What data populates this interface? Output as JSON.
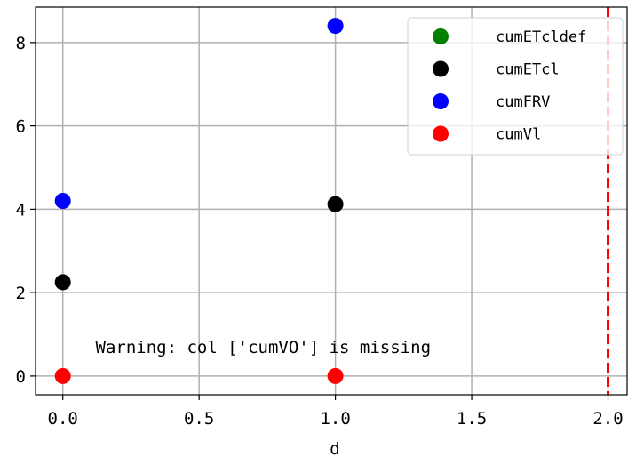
{
  "chart_data": {
    "type": "scatter",
    "title": "",
    "xlabel": "d",
    "ylabel": "",
    "xlim": [
      -0.1,
      2.07
    ],
    "ylim": [
      -0.45,
      8.85
    ],
    "xticks": [
      0.0,
      0.5,
      1.0,
      1.5,
      2.0
    ],
    "xtick_labels": [
      "0.0",
      "0.5",
      "1.0",
      "1.5",
      "2.0"
    ],
    "yticks": [
      0,
      2,
      4,
      6,
      8
    ],
    "ytick_labels": [
      "0",
      "2",
      "4",
      "6",
      "8"
    ],
    "grid": true,
    "legend_position": "top-right",
    "series": [
      {
        "name": "cumETcldef",
        "color": "#008000",
        "points": []
      },
      {
        "name": "cumETcl",
        "color": "#000000",
        "points": [
          [
            0,
            2.25
          ],
          [
            1,
            4.12
          ]
        ]
      },
      {
        "name": "cumFRV",
        "color": "#0000ff",
        "points": [
          [
            0,
            4.2
          ],
          [
            1,
            8.4
          ]
        ]
      },
      {
        "name": "cumVl",
        "color": "#ff0000",
        "points": [
          [
            0,
            0
          ],
          [
            1,
            0
          ]
        ]
      }
    ],
    "vertical_line": {
      "x": 2.0,
      "color": "#ff0000",
      "style": "dashed"
    },
    "annotation": {
      "text": "Warning: col ['cumVO'] is missing",
      "x": 0.12,
      "y": 0.55
    }
  }
}
